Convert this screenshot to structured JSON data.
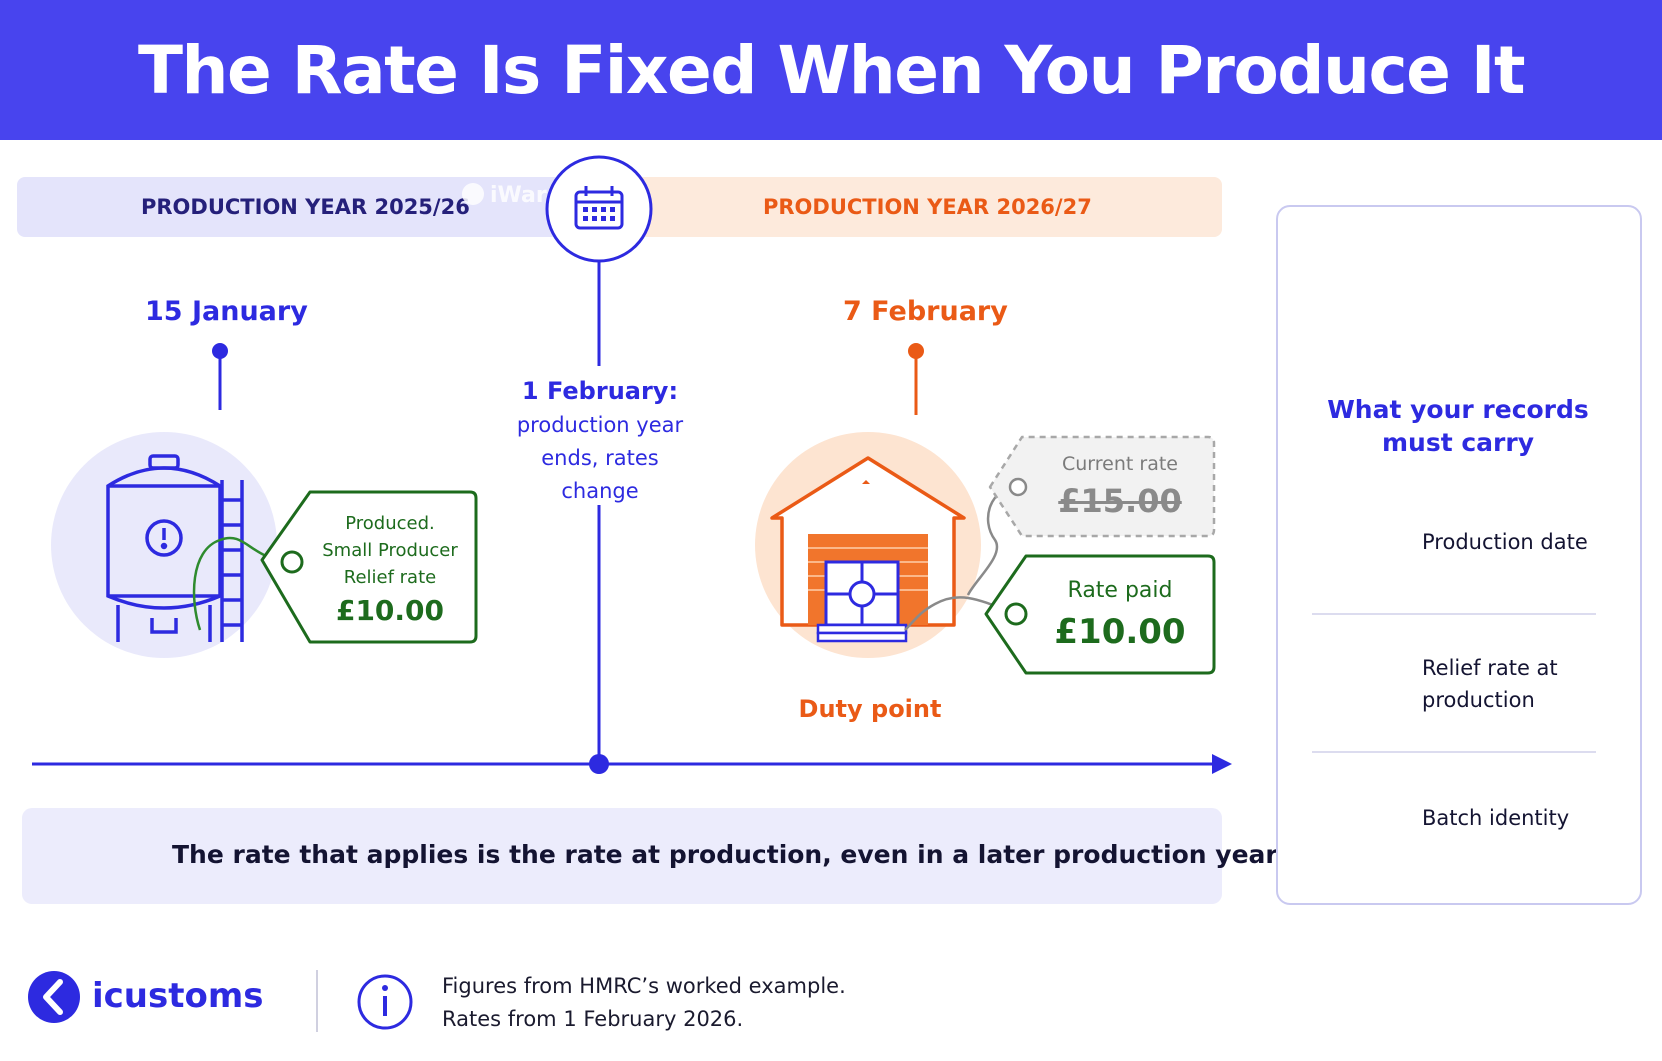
{
  "header": {
    "title": "The Rate Is Fixed When You Produce It"
  },
  "timeline": {
    "left_year": "PRODUCTION YEAR 2025/26",
    "right_year": "PRODUCTION YEAR 2026/27",
    "watermark": "iWarehouse",
    "left_date": "15 January",
    "right_date": "7 February",
    "boundary_title": "1 February:",
    "boundary_text": "production year ends, rates change"
  },
  "production_tag": {
    "line1": "Produced.",
    "line2": "Small Producer",
    "line3": "Relief rate",
    "amount": "£10.00"
  },
  "current_tag": {
    "label": "Current rate",
    "amount": "£15.00"
  },
  "paid_tag": {
    "label": "Rate paid",
    "amount": "£10.00"
  },
  "duty_point": "Duty point",
  "banner": {
    "text": "The rate that applies is the rate at production, even in a later production year."
  },
  "sidebar": {
    "title": "What your records must carry",
    "items": [
      {
        "icon": "calendar-icon",
        "label": "Production date"
      },
      {
        "icon": "pound-icon",
        "label": "Relief rate at production"
      },
      {
        "icon": "barcode-icon",
        "label": "Batch identity"
      }
    ]
  },
  "footer": {
    "brand": "icustoms",
    "note_line1": "Figures from HMRC’s worked example.",
    "note_line2": "Rates from 1 February 2026."
  },
  "colors": {
    "primary": "#4844ee",
    "orange": "#ea5a16",
    "green": "#1d6b1d",
    "lavender": "#e4e4fb",
    "peach": "#fdeadc"
  }
}
